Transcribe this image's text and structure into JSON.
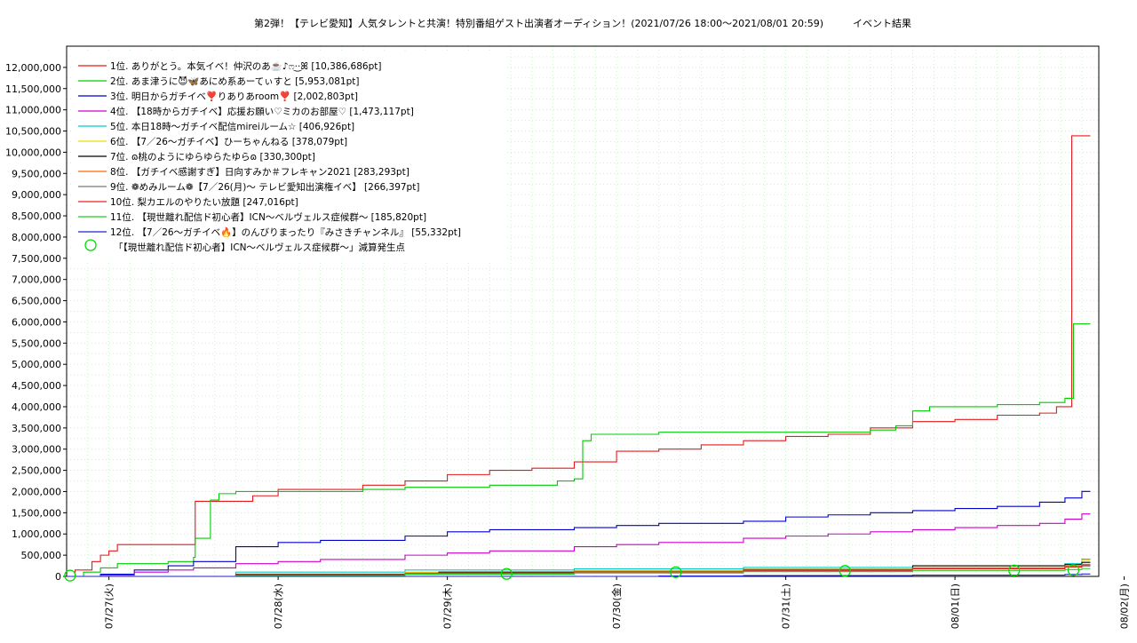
{
  "chart_data": {
    "type": "line",
    "title": "第2弾！【テレビ愛知】人気タレントと共演！特別番組ゲスト出演者オーディション！(2021/07/26 18:00〜2021/08/01 20:59)　　　イベント結果",
    "xlabel": "",
    "ylabel": "",
    "xlim": [
      0,
      6.1
    ],
    "ylim": [
      0,
      12500000
    ],
    "grid": true,
    "legend_position": "top-left",
    "x_ticks": [
      {
        "x": 0.25,
        "label": "07/27(火)"
      },
      {
        "x": 1.25,
        "label": "07/28(水)"
      },
      {
        "x": 2.25,
        "label": "07/29(木)"
      },
      {
        "x": 3.25,
        "label": "07/30(金)"
      },
      {
        "x": 4.25,
        "label": "07/31(土)"
      },
      {
        "x": 5.25,
        "label": "08/01(日)"
      },
      {
        "x": 6.25,
        "label": "08/02(月)"
      }
    ],
    "y_ticks": [
      {
        "v": 0,
        "label": "0"
      },
      {
        "v": 500000,
        "label": "500,000"
      },
      {
        "v": 1000000,
        "label": "1,000,000"
      },
      {
        "v": 1500000,
        "label": "1,500,000"
      },
      {
        "v": 2000000,
        "label": "2,000,000"
      },
      {
        "v": 2500000,
        "label": "2,500,000"
      },
      {
        "v": 3000000,
        "label": "3,000,000"
      },
      {
        "v": 3500000,
        "label": "3,500,000"
      },
      {
        "v": 4000000,
        "label": "4,000,000"
      },
      {
        "v": 4500000,
        "label": "4,500,000"
      },
      {
        "v": 5000000,
        "label": "5,000,000"
      },
      {
        "v": 5500000,
        "label": "5,500,000"
      },
      {
        "v": 6000000,
        "label": "6,000,000"
      },
      {
        "v": 6500000,
        "label": "6,500,000"
      },
      {
        "v": 7000000,
        "label": "7,000,000"
      },
      {
        "v": 7500000,
        "label": "7,500,000"
      },
      {
        "v": 8000000,
        "label": "8,000,000"
      },
      {
        "v": 8500000,
        "label": "8,500,000"
      },
      {
        "v": 9000000,
        "label": "9,000,000"
      },
      {
        "v": 9500000,
        "label": "9,500,000"
      },
      {
        "v": 10000000,
        "label": "10,000,000"
      },
      {
        "v": 10500000,
        "label": "10,500,000"
      },
      {
        "v": 11000000,
        "label": "11,000,000"
      },
      {
        "v": 11500000,
        "label": "11,500,000"
      },
      {
        "v": 12000000,
        "label": "12,000,000"
      }
    ],
    "series": [
      {
        "name": "1位. ありがとう。本気イベ！仲沢のあ☕️♪ෆ·͜·ꕤ [10,386,686pt]",
        "color": "#e41a1c",
        "points": [
          [
            0,
            0
          ],
          [
            0.05,
            150000
          ],
          [
            0.1,
            150000
          ],
          [
            0.15,
            350000
          ],
          [
            0.2,
            500000
          ],
          [
            0.25,
            600000
          ],
          [
            0.3,
            750000
          ],
          [
            0.75,
            750000
          ],
          [
            0.76,
            1770000
          ],
          [
            1.0,
            1770000
          ],
          [
            1.1,
            1900000
          ],
          [
            1.25,
            2050000
          ],
          [
            1.75,
            2150000
          ],
          [
            2.0,
            2250000
          ],
          [
            2.25,
            2400000
          ],
          [
            2.5,
            2500000
          ],
          [
            2.75,
            2550000
          ],
          [
            3.0,
            2700000
          ],
          [
            3.25,
            2950000
          ],
          [
            3.5,
            3000000
          ],
          [
            3.75,
            3100000
          ],
          [
            4.0,
            3200000
          ],
          [
            4.25,
            3300000
          ],
          [
            4.5,
            3350000
          ],
          [
            4.75,
            3500000
          ],
          [
            5.0,
            3650000
          ],
          [
            5.25,
            3700000
          ],
          [
            5.5,
            3800000
          ],
          [
            5.75,
            3850000
          ],
          [
            5.85,
            4000000
          ],
          [
            5.93,
            4000000
          ],
          [
            5.94,
            10386686
          ],
          [
            6.05,
            10386686
          ]
        ]
      },
      {
        "name": "2位. あま津うに😈🦋あにめ系あーてぃすと [5,953,081pt]",
        "color": "#00cc00",
        "points": [
          [
            0,
            0
          ],
          [
            0.1,
            100000
          ],
          [
            0.2,
            200000
          ],
          [
            0.3,
            300000
          ],
          [
            0.6,
            350000
          ],
          [
            0.75,
            450000
          ],
          [
            0.76,
            900000
          ],
          [
            0.84,
            900000
          ],
          [
            0.85,
            1800000
          ],
          [
            0.9,
            1950000
          ],
          [
            1.0,
            2000000
          ],
          [
            1.25,
            2000000
          ],
          [
            1.75,
            2050000
          ],
          [
            2.0,
            2100000
          ],
          [
            2.5,
            2150000
          ],
          [
            2.9,
            2250000
          ],
          [
            3.0,
            2300000
          ],
          [
            3.05,
            3200000
          ],
          [
            3.1,
            3350000
          ],
          [
            3.5,
            3400000
          ],
          [
            4.0,
            3400000
          ],
          [
            4.5,
            3400000
          ],
          [
            4.75,
            3450000
          ],
          [
            4.9,
            3550000
          ],
          [
            5.0,
            3900000
          ],
          [
            5.1,
            4000000
          ],
          [
            5.5,
            4050000
          ],
          [
            5.75,
            4100000
          ],
          [
            5.9,
            4200000
          ],
          [
            5.94,
            4200000
          ],
          [
            5.95,
            5953081
          ],
          [
            6.05,
            5953081
          ]
        ]
      },
      {
        "name": "3位. 明日からガチイベ❣️りありあroom❣️ [2,002,803pt]",
        "color": "#0000cc",
        "points": [
          [
            0,
            0
          ],
          [
            0.2,
            50000
          ],
          [
            0.4,
            150000
          ],
          [
            0.6,
            250000
          ],
          [
            0.75,
            350000
          ],
          [
            1.0,
            700000
          ],
          [
            1.25,
            800000
          ],
          [
            1.5,
            850000
          ],
          [
            2.0,
            950000
          ],
          [
            2.25,
            1050000
          ],
          [
            2.5,
            1100000
          ],
          [
            3.0,
            1150000
          ],
          [
            3.25,
            1200000
          ],
          [
            3.5,
            1250000
          ],
          [
            4.0,
            1300000
          ],
          [
            4.25,
            1400000
          ],
          [
            4.5,
            1450000
          ],
          [
            4.75,
            1500000
          ],
          [
            5.0,
            1550000
          ],
          [
            5.25,
            1600000
          ],
          [
            5.5,
            1650000
          ],
          [
            5.75,
            1750000
          ],
          [
            5.9,
            1850000
          ],
          [
            6.0,
            2002803
          ],
          [
            6.05,
            2002803
          ]
        ]
      },
      {
        "name": "4位. 【18時からガチイベ】応援お願い♡ミカのお部屋♡ [1,473,117pt]",
        "color": "#cc00cc",
        "points": [
          [
            0,
            0
          ],
          [
            0.2,
            30000
          ],
          [
            0.4,
            100000
          ],
          [
            0.6,
            150000
          ],
          [
            0.75,
            200000
          ],
          [
            1.0,
            300000
          ],
          [
            1.25,
            350000
          ],
          [
            1.5,
            400000
          ],
          [
            2.0,
            500000
          ],
          [
            2.25,
            550000
          ],
          [
            2.5,
            600000
          ],
          [
            3.0,
            700000
          ],
          [
            3.25,
            750000
          ],
          [
            3.5,
            800000
          ],
          [
            4.0,
            900000
          ],
          [
            4.25,
            950000
          ],
          [
            4.5,
            1000000
          ],
          [
            4.75,
            1050000
          ],
          [
            5.0,
            1100000
          ],
          [
            5.25,
            1150000
          ],
          [
            5.5,
            1200000
          ],
          [
            5.75,
            1250000
          ],
          [
            5.9,
            1350000
          ],
          [
            6.0,
            1473117
          ],
          [
            6.05,
            1473117
          ]
        ]
      },
      {
        "name": "5位. 本日18時〜ガチイベ配信mireiルーム☆ [406,926pt]",
        "color": "#00cccc",
        "points": [
          [
            0,
            0
          ],
          [
            1.0,
            100000
          ],
          [
            2.0,
            150000
          ],
          [
            3.0,
            180000
          ],
          [
            4.0,
            210000
          ],
          [
            5.0,
            250000
          ],
          [
            5.9,
            300000
          ],
          [
            6.0,
            406926
          ],
          [
            6.05,
            406926
          ]
        ]
      },
      {
        "name": "6位. 【7／26〜ガチイベ】ひーちゃんねる [378,079pt]",
        "color": "#eedd00",
        "points": [
          [
            0,
            0
          ],
          [
            1.0,
            50000
          ],
          [
            2.0,
            100000
          ],
          [
            3.0,
            130000
          ],
          [
            4.0,
            170000
          ],
          [
            5.0,
            200000
          ],
          [
            5.9,
            250000
          ],
          [
            6.0,
            378079
          ],
          [
            6.05,
            378079
          ]
        ]
      },
      {
        "name": "7位. ɷ桃のようにゆらゆらたゆらɷ [330,300pt]",
        "color": "#000000",
        "points": [
          [
            0,
            0
          ],
          [
            1.0,
            50000
          ],
          [
            2.2,
            100000
          ],
          [
            3.0,
            120000
          ],
          [
            4.0,
            160000
          ],
          [
            5.0,
            250000
          ],
          [
            5.9,
            280000
          ],
          [
            6.0,
            330300
          ],
          [
            6.05,
            330300
          ]
        ]
      },
      {
        "name": "8位. 【ガチイベ感謝すぎ】日向すみか＃フレキャン2021 [283,293pt]",
        "color": "#ff6600",
        "points": [
          [
            0,
            0
          ],
          [
            1.0,
            40000
          ],
          [
            2.0,
            80000
          ],
          [
            3.0,
            120000
          ],
          [
            4.0,
            150000
          ],
          [
            5.0,
            200000
          ],
          [
            5.9,
            250000
          ],
          [
            6.0,
            283293
          ],
          [
            6.05,
            283293
          ]
        ]
      },
      {
        "name": "9位. ❁めみルーム❁【7／26(月)〜 テレビ愛知出演権イベ】 [266,397pt]",
        "color": "#777777",
        "points": [
          [
            0,
            0
          ],
          [
            1.0,
            30000
          ],
          [
            2.0,
            70000
          ],
          [
            3.0,
            110000
          ],
          [
            4.0,
            140000
          ],
          [
            5.0,
            190000
          ],
          [
            5.9,
            230000
          ],
          [
            6.0,
            266397
          ],
          [
            6.05,
            266397
          ]
        ]
      },
      {
        "name": "10位. 梨カエルのやりたい放題 [247,016pt]",
        "color": "#ee2222",
        "points": [
          [
            0,
            0
          ],
          [
            1.0,
            30000
          ],
          [
            2.0,
            60000
          ],
          [
            3.0,
            100000
          ],
          [
            4.0,
            130000
          ],
          [
            5.0,
            180000
          ],
          [
            5.9,
            220000
          ],
          [
            6.0,
            247016
          ],
          [
            6.05,
            247016
          ]
        ]
      },
      {
        "name": "11位. 【現世離れ配信ド初心者】ICN〜ベルヴェルス症候群〜 [185,820pt]",
        "color": "#22cc22",
        "points": [
          [
            0,
            0
          ],
          [
            1.0,
            20000
          ],
          [
            2.0,
            50000
          ],
          [
            3.0,
            80000
          ],
          [
            4.0,
            110000
          ],
          [
            5.0,
            140000
          ],
          [
            5.9,
            160000
          ],
          [
            6.0,
            185820
          ],
          [
            6.05,
            185820
          ]
        ]
      },
      {
        "name": "12位. 【7／26〜ガチイベ🔥】のんびりまったり『みさきチャンネル』 [55,332pt]",
        "color": "#2222cc",
        "points": [
          [
            0,
            0
          ],
          [
            3.0,
            0
          ],
          [
            3.5,
            10000
          ],
          [
            4.0,
            20000
          ],
          [
            5.0,
            30000
          ],
          [
            5.9,
            45000
          ],
          [
            6.0,
            55332
          ],
          [
            6.05,
            55332
          ]
        ]
      }
    ],
    "markers": {
      "name": "「【現世離れ配信ド初心者】ICN〜ベルヴェルス症候群〜」減算発生点",
      "color": "#00dd00",
      "points": [
        [
          0.02,
          20000
        ],
        [
          2.6,
          60000
        ],
        [
          3.6,
          100000
        ],
        [
          4.6,
          130000
        ],
        [
          5.6,
          140000
        ],
        [
          5.95,
          150000
        ]
      ]
    }
  }
}
